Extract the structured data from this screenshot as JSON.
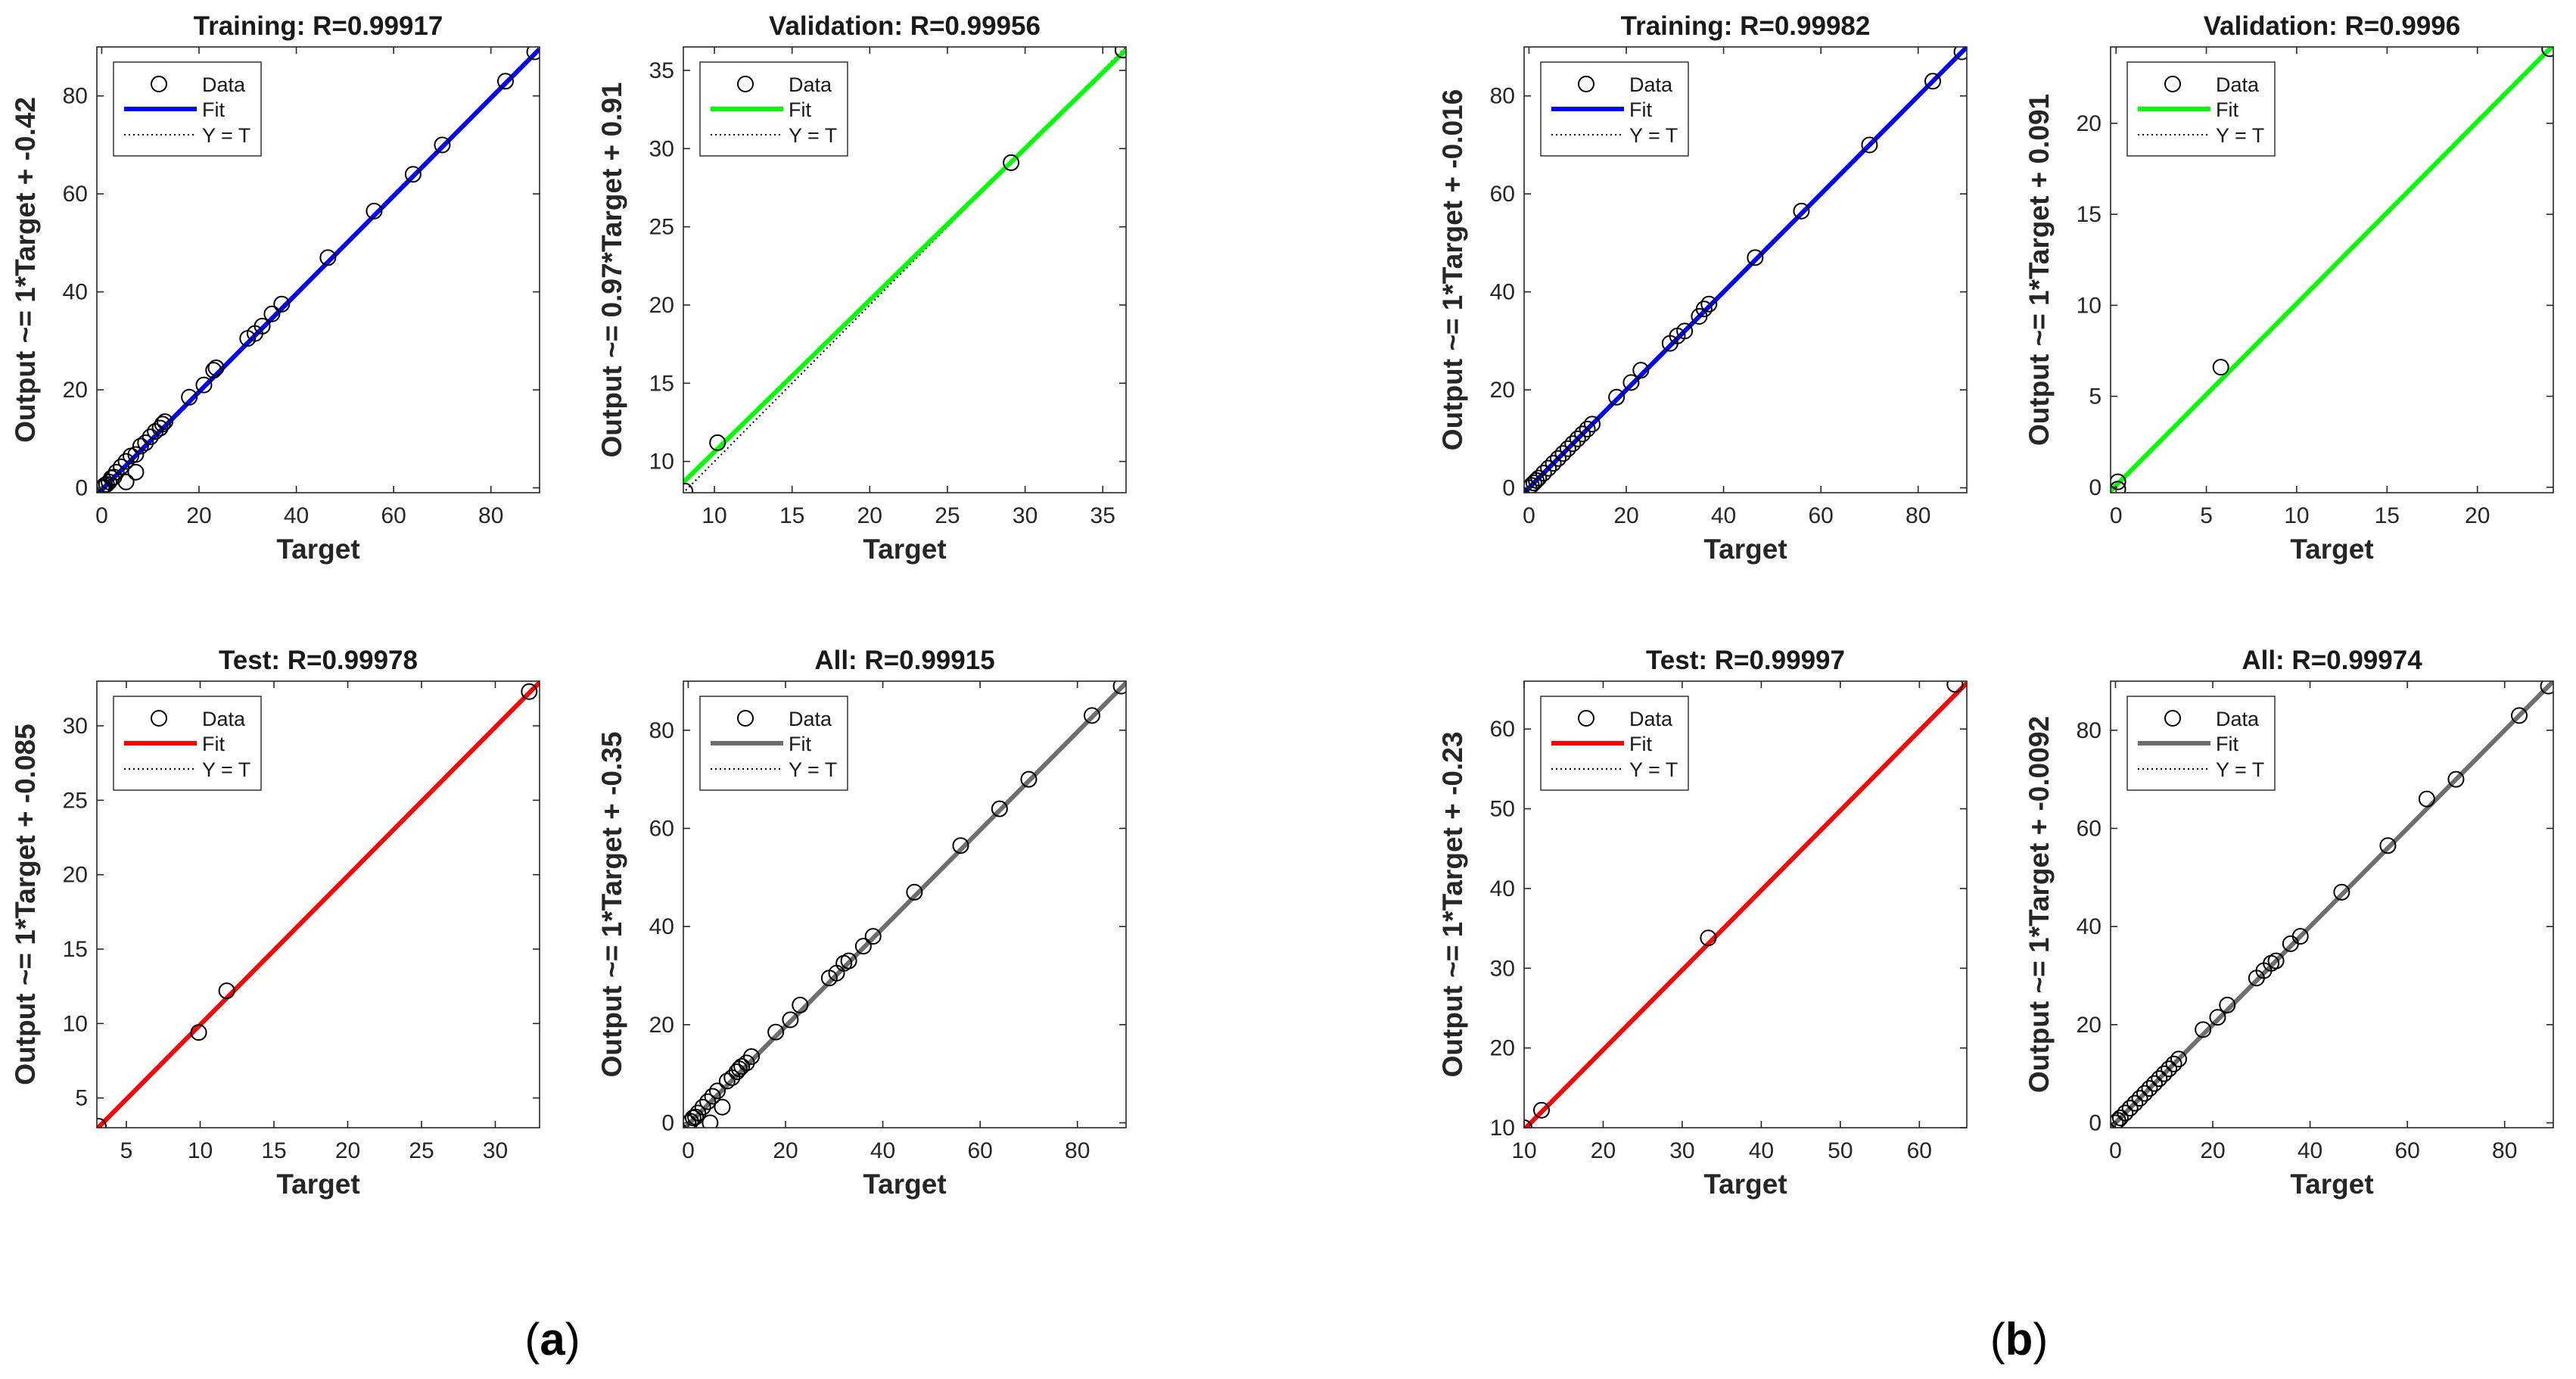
{
  "panel_labels": [
    "a",
    "b"
  ],
  "chart_data": [
    {
      "type": "scatter",
      "group": "a",
      "title": "Training: R=0.99917",
      "xlabel": "Target",
      "ylabel": "Output ~= 1*Target + -0.42",
      "xlim": [
        -1,
        90
      ],
      "ylim": [
        -1,
        90
      ],
      "xticks": [
        0,
        20,
        40,
        60,
        80
      ],
      "yticks": [
        0,
        20,
        40,
        60,
        80
      ],
      "fit_color": "#0000ff",
      "fit": {
        "slope": 1,
        "intercept": -0.42
      },
      "legend": [
        "Data",
        "Fit",
        "Y = T"
      ],
      "points": [
        [
          0,
          0
        ],
        [
          0.3,
          0.2
        ],
        [
          0.6,
          0.5
        ],
        [
          1,
          0.7
        ],
        [
          1.5,
          1.2
        ],
        [
          2,
          2
        ],
        [
          2.5,
          2.2
        ],
        [
          3,
          3.2
        ],
        [
          4,
          4.3
        ],
        [
          5,
          1.2
        ],
        [
          5,
          5.4
        ],
        [
          6,
          6.5
        ],
        [
          7,
          6.8
        ],
        [
          7,
          3.2
        ],
        [
          8,
          8.5
        ],
        [
          9,
          9.2
        ],
        [
          10,
          10.4
        ],
        [
          11,
          11.5
        ],
        [
          12,
          12.2
        ],
        [
          12.5,
          13
        ],
        [
          13,
          13.5
        ],
        [
          18,
          18.5
        ],
        [
          21,
          21
        ],
        [
          23,
          24
        ],
        [
          23.5,
          24.5
        ],
        [
          30,
          30.5
        ],
        [
          31.5,
          31.5
        ],
        [
          33,
          33
        ],
        [
          35,
          35.5
        ],
        [
          37,
          37.5
        ],
        [
          46.5,
          47
        ],
        [
          56,
          56.5
        ],
        [
          64,
          64
        ],
        [
          70,
          70
        ],
        [
          83,
          83
        ],
        [
          89,
          89
        ]
      ]
    },
    {
      "type": "scatter",
      "group": "a",
      "title": "Validation: R=0.99956",
      "xlabel": "Target",
      "ylabel": "Output ~= 0.97*Target + 0.91",
      "xlim": [
        8,
        36.5
      ],
      "ylim": [
        8,
        36.5
      ],
      "xticks": [
        10,
        15,
        20,
        25,
        30,
        35
      ],
      "yticks": [
        10,
        15,
        20,
        25,
        30,
        35
      ],
      "fit_color": "#00ff00",
      "fit": {
        "slope": 0.97,
        "intercept": 0.91
      },
      "legend": [
        "Data",
        "Fit",
        "Y = T"
      ],
      "points": [
        [
          8.1,
          8.1
        ],
        [
          10.2,
          11.2
        ],
        [
          29.1,
          29.1
        ],
        [
          36.3,
          36.3
        ]
      ]
    },
    {
      "type": "scatter",
      "group": "a",
      "title": "Test: R=0.99978",
      "xlabel": "Target",
      "ylabel": "Output ~= 1*Target + -0.085",
      "xlim": [
        3,
        33
      ],
      "ylim": [
        3,
        33
      ],
      "xticks": [
        5,
        10,
        15,
        20,
        25,
        30
      ],
      "yticks": [
        5,
        10,
        15,
        20,
        25,
        30
      ],
      "fit_color": "#ff0000",
      "fit": {
        "slope": 1,
        "intercept": -0.085
      },
      "legend": [
        "Data",
        "Fit",
        "Y = T"
      ],
      "points": [
        [
          3.1,
          3.1
        ],
        [
          9.9,
          9.4
        ],
        [
          11.8,
          12.2
        ],
        [
          32.3,
          32.3
        ]
      ]
    },
    {
      "type": "scatter",
      "group": "a",
      "title": "All: R=0.99915",
      "xlabel": "Target",
      "ylabel": "Output ~= 1*Target + -0.35",
      "xlim": [
        -1,
        90
      ],
      "ylim": [
        -1,
        90
      ],
      "xticks": [
        0,
        20,
        40,
        60,
        80
      ],
      "yticks": [
        0,
        20,
        40,
        60,
        80
      ],
      "fit_color": "#6e6e6e",
      "fit": {
        "slope": 1,
        "intercept": -0.35
      },
      "legend": [
        "Data",
        "Fit",
        "Y = T"
      ],
      "points": [
        [
          0,
          0
        ],
        [
          0.5,
          0.3
        ],
        [
          1,
          1
        ],
        [
          1.5,
          1.2
        ],
        [
          2,
          2
        ],
        [
          3,
          3.2
        ],
        [
          4,
          4.3
        ],
        [
          4.5,
          0
        ],
        [
          5,
          5.4
        ],
        [
          6,
          6.5
        ],
        [
          7,
          3.2
        ],
        [
          8,
          8.5
        ],
        [
          9,
          9.2
        ],
        [
          10,
          10.4
        ],
        [
          10.5,
          11
        ],
        [
          11,
          11.5
        ],
        [
          12,
          12.2
        ],
        [
          13,
          13.5
        ],
        [
          18,
          18.5
        ],
        [
          21,
          21
        ],
        [
          23,
          24
        ],
        [
          29,
          29.5
        ],
        [
          30.5,
          30.5
        ],
        [
          32,
          32.5
        ],
        [
          33,
          33
        ],
        [
          36,
          36
        ],
        [
          38,
          38
        ],
        [
          46.5,
          47
        ],
        [
          56,
          56.5
        ],
        [
          64,
          64
        ],
        [
          70,
          70
        ],
        [
          83,
          83
        ],
        [
          89,
          89
        ]
      ]
    },
    {
      "type": "scatter",
      "group": "b",
      "title": "Training: R=0.99982",
      "xlabel": "Target",
      "ylabel": "Output ~= 1*Target + -0.016",
      "xlim": [
        -1,
        90
      ],
      "ylim": [
        -1,
        90
      ],
      "xticks": [
        0,
        20,
        40,
        60,
        80
      ],
      "yticks": [
        0,
        20,
        40,
        60,
        80
      ],
      "fit_color": "#0000ff",
      "fit": {
        "slope": 1,
        "intercept": -0.016
      },
      "legend": [
        "Data",
        "Fit",
        "Y = T"
      ],
      "points": [
        [
          0,
          0
        ],
        [
          0.5,
          0.5
        ],
        [
          1,
          1
        ],
        [
          1.5,
          1.5
        ],
        [
          2,
          2
        ],
        [
          3,
          3
        ],
        [
          4,
          4
        ],
        [
          5,
          5
        ],
        [
          6,
          6
        ],
        [
          7,
          7
        ],
        [
          8,
          8
        ],
        [
          9,
          9
        ],
        [
          10,
          10
        ],
        [
          11,
          11
        ],
        [
          12,
          12
        ],
        [
          13,
          13
        ],
        [
          18,
          18.5
        ],
        [
          21,
          21.5
        ],
        [
          23,
          24
        ],
        [
          29,
          29.5
        ],
        [
          30.5,
          31
        ],
        [
          32,
          32
        ],
        [
          35,
          35
        ],
        [
          36,
          36.5
        ],
        [
          37,
          37.5
        ],
        [
          46.5,
          47
        ],
        [
          56,
          56.5
        ],
        [
          70,
          70
        ],
        [
          83,
          83
        ],
        [
          89,
          89
        ]
      ]
    },
    {
      "type": "scatter",
      "group": "b",
      "title": "Validation: R=0.9996",
      "xlabel": "Target",
      "ylabel": "Output ~= 1*Target + 0.091",
      "xlim": [
        -0.3,
        24.2
      ],
      "ylim": [
        -0.3,
        24.2
      ],
      "xticks": [
        0,
        5,
        10,
        15,
        20
      ],
      "yticks": [
        0,
        5,
        10,
        15,
        20
      ],
      "fit_color": "#00ff00",
      "fit": {
        "slope": 1,
        "intercept": 0.091
      },
      "legend": [
        "Data",
        "Fit",
        "Y = T"
      ],
      "points": [
        [
          0.1,
          -0.1
        ],
        [
          0.1,
          0.3
        ],
        [
          5.8,
          6.6
        ],
        [
          24,
          24.1
        ]
      ]
    },
    {
      "type": "scatter",
      "group": "b",
      "title": "Test: R=0.99997",
      "xlabel": "Target",
      "ylabel": "Output ~= 1*Target + -0.23",
      "xlim": [
        10,
        66
      ],
      "ylim": [
        10,
        66
      ],
      "xticks": [
        10,
        20,
        30,
        40,
        50,
        60
      ],
      "yticks": [
        10,
        20,
        30,
        40,
        50,
        60
      ],
      "fit_color": "#ff0000",
      "fit": {
        "slope": 1,
        "intercept": -0.23
      },
      "legend": [
        "Data",
        "Fit",
        "Y = T"
      ],
      "points": [
        [
          10,
          10
        ],
        [
          12.2,
          12.2
        ],
        [
          33.3,
          33.8
        ],
        [
          64.5,
          65.6
        ]
      ]
    },
    {
      "type": "scatter",
      "group": "b",
      "title": "All: R=0.99974",
      "xlabel": "Target",
      "ylabel": "Output ~= 1*Target + -0.0092",
      "xlim": [
        -1,
        90
      ],
      "ylim": [
        -1,
        90
      ],
      "xticks": [
        0,
        20,
        40,
        60,
        80
      ],
      "yticks": [
        0,
        20,
        40,
        60,
        80
      ],
      "fit_color": "#6e6e6e",
      "fit": {
        "slope": 1,
        "intercept": -0.0092
      },
      "legend": [
        "Data",
        "Fit",
        "Y = T"
      ],
      "points": [
        [
          0,
          0
        ],
        [
          0.5,
          0.5
        ],
        [
          1,
          1
        ],
        [
          2,
          2
        ],
        [
          3,
          3
        ],
        [
          4,
          4
        ],
        [
          5,
          5
        ],
        [
          6,
          6
        ],
        [
          7,
          7
        ],
        [
          8,
          8
        ],
        [
          9,
          9
        ],
        [
          10,
          10
        ],
        [
          11,
          11
        ],
        [
          12,
          12
        ],
        [
          13,
          13
        ],
        [
          18,
          19
        ],
        [
          21,
          21.5
        ],
        [
          23,
          24
        ],
        [
          29,
          29.5
        ],
        [
          30.5,
          31
        ],
        [
          32,
          32.5
        ],
        [
          33,
          33
        ],
        [
          36,
          36.5
        ],
        [
          38,
          38
        ],
        [
          46.5,
          47
        ],
        [
          56,
          56.5
        ],
        [
          64,
          66
        ],
        [
          70,
          70
        ],
        [
          83,
          83
        ],
        [
          89,
          89
        ]
      ]
    }
  ]
}
